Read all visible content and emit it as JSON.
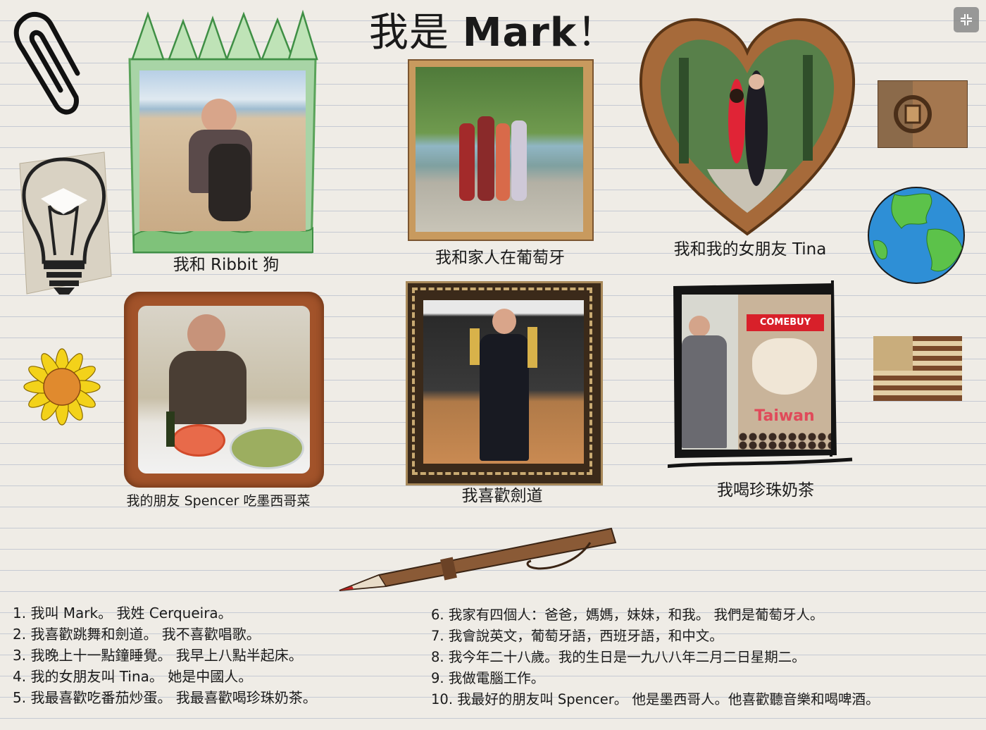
{
  "title": {
    "prefix": "我是 ",
    "name": "Mark",
    "suffix": "！"
  },
  "icons": {
    "paperclip": "paperclip-icon",
    "lightbulb": "lightbulb-icon",
    "sunflower": "sunflower-icon",
    "globe": "globe-icon",
    "flag": "usa-flag-icon",
    "portugal": "portugal-flag-icon",
    "pen": "pen-icon",
    "fullscreen": "fullscreen-toggle-icon"
  },
  "photos": [
    {
      "caption": "我和 Ribbit 狗"
    },
    {
      "caption": "我和家人在葡萄牙"
    },
    {
      "caption": "我和我的女朋友 Tina"
    },
    {
      "caption": "我的朋友 Spencer 吃墨西哥菜"
    },
    {
      "caption": "我喜歡劍道"
    },
    {
      "caption": "我喝珍珠奶茶"
    }
  ],
  "facts_left": [
    "1. 我叫 Mark。 我姓 Cerqueira。",
    "2. 我喜歡跳舞和劍道。 我不喜歡唱歌。",
    "3. 我晚上十一點鐘睡覺。 我早上八點半起床。",
    "4. 我的女朋友叫 Tina。 她是中國人。",
    "5. 我最喜歡吃番茄炒蛋。 我最喜歡喝珍珠奶茶。"
  ],
  "facts_right": [
    "6. 我家有四個人：爸爸，媽媽，妹妹，和我。 我們是葡萄牙人。",
    "7. 我會說英文，葡萄牙語，西班牙語，和中文。",
    "8. 我今年二十八歲。我的生日是一九八八年二月二日星期二。",
    "9. 我做電腦工作。",
    "10. 我最好的朋友叫 Spencer。 他是墨西哥人。他喜歡聽音樂和喝啤酒。"
  ],
  "photo_signs": {
    "comebuy": "COMEBUY",
    "taiwan": "Taiwan"
  }
}
